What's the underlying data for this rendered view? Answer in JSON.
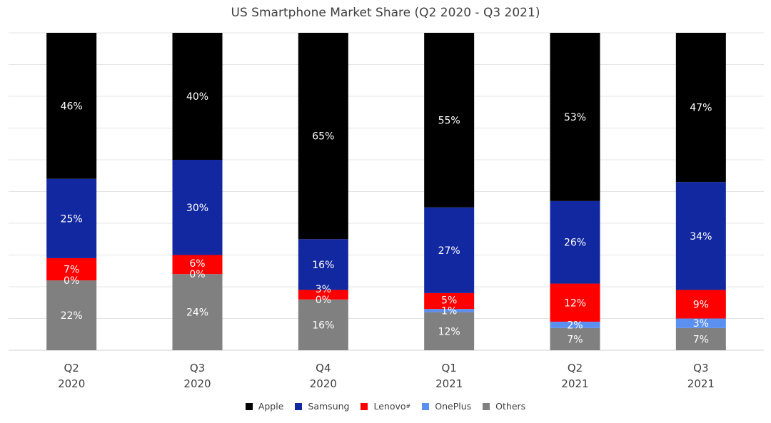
{
  "chart_data": {
    "type": "bar",
    "stacked": true,
    "title": "US Smartphone Market Share (Q2 2020 - Q3 2021)",
    "categories": [
      [
        "Q2",
        "2020"
      ],
      [
        "Q3",
        "2020"
      ],
      [
        "Q4",
        "2020"
      ],
      [
        "Q1",
        "2021"
      ],
      [
        "Q2",
        "2021"
      ],
      [
        "Q3",
        "2021"
      ]
    ],
    "series": [
      {
        "name": "Others",
        "color": "#808080",
        "values": [
          22,
          24,
          16,
          12,
          7,
          7
        ],
        "labels": [
          "22%",
          "24%",
          "16%",
          "12%",
          "7%",
          "7%"
        ]
      },
      {
        "name": "OnePlus",
        "color": "#5b8ff0",
        "values": [
          0,
          0,
          0,
          1,
          2,
          3
        ],
        "labels": [
          "0%",
          "0%",
          "0%",
          "1%",
          "2%",
          "3%"
        ]
      },
      {
        "name": "Lenovo",
        "sup": "#",
        "color": "#ff0000",
        "values": [
          7,
          6,
          3,
          5,
          12,
          9
        ],
        "labels": [
          "7%",
          "6%",
          "3%",
          "5%",
          "12%",
          "9%"
        ]
      },
      {
        "name": "Samsung",
        "color": "#1228a0",
        "values": [
          25,
          30,
          16,
          27,
          26,
          34
        ],
        "labels": [
          "25%",
          "30%",
          "16%",
          "27%",
          "26%",
          "34%"
        ]
      },
      {
        "name": "Apple",
        "color": "#000000",
        "values": [
          46,
          40,
          65,
          55,
          53,
          47
        ],
        "labels": [
          "46%",
          "40%",
          "65%",
          "55%",
          "53%",
          "47%"
        ]
      }
    ],
    "legend": [
      "Apple",
      "Samsung",
      "Lenovo",
      "OnePlus",
      "Others"
    ],
    "legend_position": "bottom",
    "grid": true,
    "ylim": [
      0,
      100
    ]
  }
}
